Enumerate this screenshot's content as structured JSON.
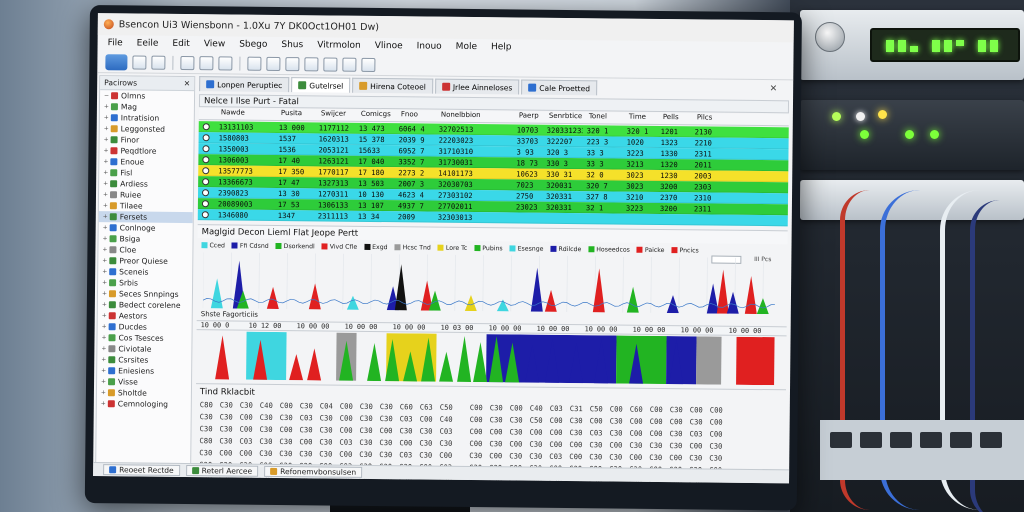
{
  "window": {
    "title": "Bsencon Ui3 Wiensbonn - 1.0Xu 7Y DK0Oct1OH01 Dw)"
  },
  "menu": [
    "File",
    "Eeile",
    "Edit",
    "View",
    "Sbego",
    "Shus",
    "Vitrmolon",
    "Vlinoe",
    "Inouo",
    "Mole",
    "Help"
  ],
  "tree": {
    "header": "Pacirows",
    "items": [
      {
        "label": "Olmns",
        "color": "#c33",
        "expand": "−"
      },
      {
        "label": "Mag",
        "color": "#4aa04a",
        "expand": "+"
      },
      {
        "label": "Intratision",
        "color": "#2e6fd0",
        "expand": "+"
      },
      {
        "label": "Leggonsted",
        "color": "#d89b2a",
        "expand": "+"
      },
      {
        "label": "Finor",
        "color": "#3c8c3c",
        "expand": "+"
      },
      {
        "label": "Peqdtlore",
        "color": "#c33",
        "expand": "+"
      },
      {
        "label": "Enoue",
        "color": "#2e6fd0",
        "expand": "+"
      },
      {
        "label": "Fisl",
        "color": "#4aa04a",
        "expand": "+"
      },
      {
        "label": "Ardiess",
        "color": "#3c8c3c",
        "expand": "+"
      },
      {
        "label": "Ruiee",
        "color": "#888",
        "expand": "+"
      },
      {
        "label": "Tilaee",
        "color": "#d89b2a",
        "expand": "+"
      },
      {
        "label": "Fersets",
        "color": "#3c8c3c",
        "expand": "+",
        "selected": true
      },
      {
        "label": "Conlnoge",
        "color": "#2e6fd0",
        "expand": "+"
      },
      {
        "label": "Bsiga",
        "color": "#4aa04a",
        "expand": "+"
      },
      {
        "label": "Cloe",
        "color": "#888",
        "expand": "+"
      },
      {
        "label": "Preor Quiese",
        "color": "#3c8c3c",
        "expand": "+"
      },
      {
        "label": "Sceneis",
        "color": "#2e6fd0",
        "expand": "+"
      },
      {
        "label": "Srbis",
        "color": "#4aa04a",
        "expand": "+"
      },
      {
        "label": "Seces Snnpings",
        "color": "#d89b2a",
        "expand": "+"
      },
      {
        "label": "Bedect corelene",
        "color": "#3c8c3c",
        "expand": "+"
      },
      {
        "label": "Aestors",
        "color": "#c33",
        "expand": "+"
      },
      {
        "label": "Ducdes",
        "color": "#2e6fd0",
        "expand": "+"
      },
      {
        "label": "Cos Tsesces",
        "color": "#4aa04a",
        "expand": "+"
      },
      {
        "label": "Civiotale",
        "color": "#888",
        "expand": "+"
      },
      {
        "label": "Csrsites",
        "color": "#3c8c3c",
        "expand": "+"
      },
      {
        "label": "Eniesiens",
        "color": "#2e6fd0",
        "expand": "+"
      },
      {
        "label": "Visse",
        "color": "#4aa04a",
        "expand": "+"
      },
      {
        "label": "Sholtde",
        "color": "#d89b2a",
        "expand": "+"
      },
      {
        "label": "Cemnologing",
        "color": "#c33",
        "expand": "+"
      }
    ]
  },
  "tabs": [
    {
      "label": "Lonpen Peruptiec",
      "color": "#2e6fd0",
      "active": false
    },
    {
      "label": "Gutelrsel",
      "color": "#3c8c3c",
      "active": true
    },
    {
      "label": "Hirena Coteoel",
      "color": "#d89b2a",
      "active": false
    },
    {
      "label": "Jrlee Ainneloses",
      "color": "#c33",
      "active": false
    },
    {
      "label": "Cale Proetted",
      "color": "#2e6fd0",
      "active": false
    }
  ],
  "packet_list": {
    "title": "Nelce I Ilse Purt - Fatal",
    "columns": [
      "Nawde",
      "Pusita",
      "Swijcer",
      "Comicgs",
      "Fnoo",
      "Nonelbbion",
      "Paerp",
      "Senrbtice",
      "Tonel",
      "Time",
      "Pells",
      "Pilcs"
    ],
    "rows": [
      {
        "color": "#3fe03f",
        "cells": [
          "13131103",
          "13 000",
          "1177112",
          "13 473",
          "6064 4",
          "32702513",
          "10703",
          "320331233",
          "320 1",
          "320 1",
          "1201",
          "2130"
        ]
      },
      {
        "color": "#3ad8e8",
        "cells": [
          "1580803",
          "1537",
          "1620313",
          "15 378",
          "2039 9",
          "22203023",
          "33703",
          "322207",
          "223 3",
          "1020",
          "1323",
          "2210"
        ]
      },
      {
        "color": "#3ad8e8",
        "cells": [
          "1350003",
          "1536",
          "2053121",
          "15633",
          "6952 7",
          "31710310",
          "3 93",
          "320 3",
          "33 3",
          "3223",
          "1330",
          "2311"
        ]
      },
      {
        "color": "#2ecc3a",
        "cells": [
          "1306003",
          "17 40",
          "1263121",
          "17 040",
          "3352 7",
          "31730031",
          "18 73",
          "330 3",
          "33 3",
          "3213",
          "1320",
          "2011"
        ]
      },
      {
        "color": "#f5e12a",
        "cells": [
          "13577773",
          "17 350",
          "1770117",
          "17 180",
          "2273 2",
          "14101173",
          "10623",
          "330 31",
          "32 0",
          "3023",
          "1230",
          "2003"
        ]
      },
      {
        "color": "#2ecc3a",
        "cells": [
          "13366673",
          "17 47",
          "1327313",
          "13 503",
          "2007 3",
          "32030703",
          "7023",
          "320031",
          "320 7",
          "3023",
          "3200",
          "2303"
        ]
      },
      {
        "color": "#3ad8e8",
        "cells": [
          "2390823",
          "13 30",
          "1270311",
          "10 130",
          "4623 4",
          "27303102",
          "2750",
          "320331",
          "327 8",
          "3210",
          "2370",
          "2310"
        ]
      },
      {
        "color": "#2ecc3a",
        "cells": [
          "20089003",
          "17 53",
          "1306133",
          "13 107",
          "4937 7",
          "27702011",
          "23023",
          "320331",
          "32 1",
          "3223",
          "3200",
          "2311"
        ]
      },
      {
        "color": "#3ad8e8",
        "cells": [
          "1346080",
          "1347",
          "2311113",
          "13 34",
          "2009",
          "32303013",
          "",
          "",
          "",
          "",
          "",
          ""
        ]
      }
    ]
  },
  "graph": {
    "title": "Maglgid Decon Lieml Flat Jeope Pertt",
    "legend": [
      {
        "name": "Cced",
        "color": "#3fd6e0"
      },
      {
        "name": "Ffi Cdsnd",
        "color": "#1d1da8"
      },
      {
        "name": "Dsorkendl",
        "color": "#22b422"
      },
      {
        "name": "Vivd Cfle",
        "color": "#e02020"
      },
      {
        "name": "Exgd",
        "color": "#111111"
      },
      {
        "name": "Hcsc Tnd",
        "color": "#9a9a9a"
      },
      {
        "name": "Lore Tc",
        "color": "#e6d21c"
      },
      {
        "name": "Pubins",
        "color": "#22b422"
      },
      {
        "name": "Esesnge",
        "color": "#3fd6e0"
      },
      {
        "name": "Rdilcde",
        "color": "#1d1da8"
      },
      {
        "name": "Hoseedcos",
        "color": "#22b422"
      },
      {
        "name": "Paicke",
        "color": "#e02020"
      },
      {
        "name": "Pncics",
        "color": "#e02020"
      }
    ],
    "control_label": "III Pcs",
    "axis_caption": "Shste   Fagorticiis",
    "time_axis": [
      "10 00 0",
      "10 12 00",
      "10 00 00",
      "10 00 00",
      "10 00 00",
      "10 03 00",
      "10 00 00",
      "10 00 00",
      "10 00 00",
      "10 00 00",
      "10 00 00",
      "10 00 00"
    ]
  },
  "hex": {
    "title": "Tind Rklacbit",
    "rows": [
      [
        "C80",
        "C30",
        "C30",
        "C40",
        "C00",
        "C30",
        "C04",
        "C00",
        "C30",
        "C30",
        "C60",
        "C63",
        "C50",
        "C00",
        "C30",
        "C00",
        "C40",
        "C03",
        "C31",
        "C50",
        "C00",
        "C60",
        "C00",
        "C30",
        "C00",
        "C00"
      ],
      [
        "C30",
        "C30",
        "C00",
        "C30",
        "C30",
        "C03",
        "C30",
        "C00",
        "C30",
        "C30",
        "C03",
        "C00",
        "C40",
        "C00",
        "C30",
        "C30",
        "C50",
        "C00",
        "C30",
        "C00",
        "C30",
        "C00",
        "C00",
        "C00",
        "C30",
        "C00"
      ],
      [
        "C30",
        "C30",
        "C00",
        "C30",
        "C00",
        "C30",
        "C30",
        "C00",
        "C30",
        "C00",
        "C30",
        "C30",
        "C03",
        "C00",
        "C00",
        "C30",
        "C00",
        "C00",
        "C30",
        "C03",
        "C30",
        "C00",
        "C00",
        "C30",
        "C03",
        "C00"
      ],
      [
        "C80",
        "C30",
        "C03",
        "C30",
        "C30",
        "C00",
        "C30",
        "C03",
        "C30",
        "C30",
        "C00",
        "C30",
        "C30",
        "C00",
        "C30",
        "C00",
        "C30",
        "C00",
        "C00",
        "C30",
        "C00",
        "C30",
        "C30",
        "C30",
        "C00",
        "C30"
      ],
      [
        "C30",
        "C00",
        "C00",
        "C30",
        "C30",
        "C30",
        "C30",
        "C00",
        "C30",
        "C30",
        "C03",
        "C30",
        "C00",
        "C30",
        "C00",
        "C30",
        "C30",
        "C03",
        "C00",
        "C30",
        "C30",
        "C00",
        "C30",
        "C00",
        "C30",
        "C30"
      ],
      [
        "C30",
        "C30",
        "C30",
        "C00",
        "C30",
        "C30",
        "C00",
        "C03",
        "C30",
        "C30",
        "C30",
        "C00",
        "C03",
        "C30",
        "C30",
        "C00",
        "C30",
        "C00",
        "C30",
        "C00",
        "C30",
        "C30",
        "C00",
        "C30",
        "C30",
        "C00"
      ],
      [
        "C30",
        "C30",
        "C00",
        "C30",
        "C30",
        "C03",
        "C30",
        "C30",
        "C00",
        "C30",
        "C30",
        "C30",
        "C30",
        "C00",
        "C30",
        "C30",
        "C00",
        "C30",
        "C30",
        "C30",
        "C00",
        "C30",
        "C30",
        "C00",
        "C30",
        "C30"
      ],
      [
        "C30",
        "C00",
        "C30",
        "C30",
        "C30",
        "C30",
        "C00",
        "C30",
        "C30",
        "C03",
        "C30",
        "C00",
        "C30",
        "C30",
        "C30",
        "C30",
        "C30",
        "C03",
        "C30",
        "C00",
        "C30",
        "C30",
        "C30",
        "C30",
        "C00",
        "C30"
      ],
      [
        "C30",
        "C30",
        "C30",
        "C30",
        "C00",
        "C30",
        "C30",
        "C30",
        "C30",
        "C30",
        "C30",
        "C30",
        "C00",
        "C30",
        "C30",
        "C30",
        "C30",
        "C30",
        "C30",
        "C30",
        "C30",
        "C00",
        "C30",
        "C30",
        "C30",
        "C30"
      ]
    ]
  },
  "statusbar": {
    "items": [
      {
        "label": "Reoeet Rectde",
        "color": "#2e6fd0"
      },
      {
        "label": "Reterl Aercee",
        "color": "#3c8c3c"
      },
      {
        "label": "Refonemvbonsulsen",
        "color": "#d89b2a"
      }
    ]
  }
}
